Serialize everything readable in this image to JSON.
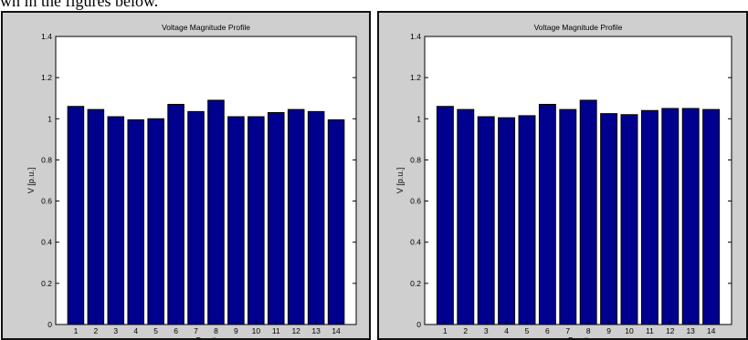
{
  "caption": "wn in the figures below.",
  "colors": {
    "bar": "#00008f",
    "bar_edge": "#000000",
    "panel_bg": "#cfcfcf",
    "axes_bg": "#ffffff"
  },
  "chart_data": [
    {
      "type": "bar",
      "title": "Voltage Magnitude Profile",
      "xlabel": "Bus #",
      "ylabel": "V [p.u.]",
      "categories": [
        "1",
        "2",
        "3",
        "4",
        "5",
        "6",
        "7",
        "8",
        "9",
        "10",
        "11",
        "12",
        "13",
        "14"
      ],
      "values": [
        1.06,
        1.045,
        1.01,
        0.995,
        1.0,
        1.07,
        1.035,
        1.09,
        1.01,
        1.01,
        1.03,
        1.045,
        1.035,
        0.995
      ],
      "ylim": [
        0,
        1.4
      ],
      "yticks": [
        "0",
        "0.2",
        "0.4",
        "0.6",
        "0.8",
        "1",
        "1.2",
        "1.4"
      ],
      "grid": false
    },
    {
      "type": "bar",
      "title": "Voltage Magnitude Profile",
      "xlabel": "Bus #",
      "ylabel": "V [p.u.]",
      "categories": [
        "1",
        "2",
        "3",
        "4",
        "5",
        "6",
        "7",
        "8",
        "9",
        "10",
        "11",
        "12",
        "13",
        "14"
      ],
      "values": [
        1.06,
        1.045,
        1.01,
        1.005,
        1.015,
        1.07,
        1.045,
        1.09,
        1.025,
        1.02,
        1.04,
        1.05,
        1.05,
        1.045
      ],
      "ylim": [
        0,
        1.4
      ],
      "yticks": [
        "0",
        "0.2",
        "0.4",
        "0.6",
        "0.8",
        "1",
        "1.2",
        "1.4"
      ],
      "grid": false
    }
  ]
}
